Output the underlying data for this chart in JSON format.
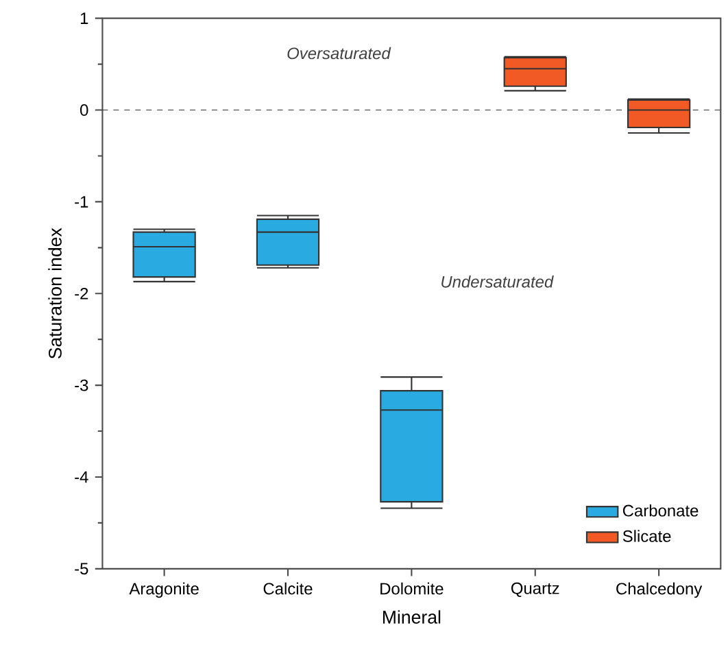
{
  "chart_data": {
    "type": "box",
    "xlabel": "Mineral",
    "ylabel": "Saturation index",
    "categories": [
      "Aragonite",
      "Calcite",
      "Dolomite",
      "Quartz",
      "Chalcedony"
    ],
    "series": [
      {
        "name": "Carbonate",
        "color": "#29abe2",
        "boxes": [
          {
            "low": -1.87,
            "q1": -1.82,
            "median": -1.49,
            "q3": -1.33,
            "high": -1.3
          },
          {
            "low": -1.72,
            "q1": -1.69,
            "median": -1.33,
            "q3": -1.19,
            "high": -1.15
          },
          {
            "low": -4.34,
            "q1": -4.27,
            "median": -3.27,
            "q3": -3.06,
            "high": -2.91
          },
          null,
          null
        ]
      },
      {
        "name": "Slicate",
        "color": "#f15a24",
        "boxes": [
          null,
          null,
          null,
          {
            "low": 0.21,
            "q1": 0.26,
            "median": 0.45,
            "q3": 0.57,
            "high": 0.58
          },
          {
            "low": -0.25,
            "q1": -0.19,
            "median": 0.0,
            "q3": 0.11,
            "high": 0.12
          }
        ]
      }
    ],
    "ylim": [
      -5,
      1
    ],
    "yticks": [
      -5,
      -4,
      -3,
      -2,
      -1,
      0,
      1
    ],
    "ref_lines": [
      {
        "axis": "y",
        "value": 0,
        "line_style": "dashed"
      }
    ],
    "annotations": [
      "Oversaturated",
      "Undersaturated"
    ],
    "legend": "bottom right",
    "grid": false
  }
}
